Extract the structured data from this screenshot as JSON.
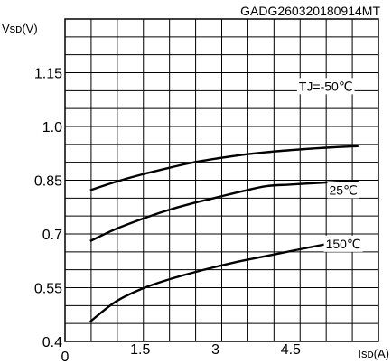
{
  "chart_data": {
    "type": "line",
    "title": "GADG260320180914MT",
    "xlabel": "Isᴅ(A)",
    "ylabel": "Vsᴅ(V)",
    "xlim": [
      0,
      6.25
    ],
    "ylim": [
      0.4,
      1.3
    ],
    "grid": true,
    "x_ticks": [
      0,
      1.5,
      3,
      4.5
    ],
    "x_tick_labels": [
      "0",
      "1.5",
      "3",
      "4.5"
    ],
    "y_ticks": [
      0.4,
      0.55,
      0.7,
      0.85,
      1.0,
      1.15
    ],
    "y_tick_labels": [
      "0.4",
      "0.55",
      "0.7",
      "0.85",
      "1.0",
      "1.15"
    ],
    "series": [
      {
        "name": "TJ=-50℃",
        "label_pos": [
          5.2,
          1.1
        ],
        "x": [
          0.5,
          1.0,
          1.5,
          2.0,
          2.5,
          3.0,
          3.5,
          4.0,
          4.5,
          5.0,
          5.5,
          5.85
        ],
        "values": [
          0.822,
          0.845,
          0.865,
          0.882,
          0.898,
          0.91,
          0.92,
          0.928,
          0.934,
          0.939,
          0.943,
          0.945
        ]
      },
      {
        "name": "25℃",
        "label_pos": [
          5.55,
          0.81
        ],
        "x": [
          0.5,
          1.0,
          1.5,
          2.0,
          2.5,
          3.0,
          3.5,
          4.0,
          4.5,
          5.0,
          5.5,
          5.85
        ],
        "values": [
          0.68,
          0.713,
          0.74,
          0.764,
          0.784,
          0.801,
          0.818,
          0.833,
          0.838,
          0.842,
          0.846,
          0.848
        ]
      },
      {
        "name": "150℃",
        "label_pos": [
          5.55,
          0.66
        ],
        "x": [
          0.5,
          1.0,
          1.5,
          2.0,
          2.5,
          3.0,
          3.5,
          4.0,
          4.5,
          5.0,
          5.5,
          5.85
        ],
        "values": [
          0.455,
          0.51,
          0.545,
          0.57,
          0.59,
          0.608,
          0.624,
          0.638,
          0.652,
          0.666,
          0.679,
          0.688
        ]
      }
    ]
  }
}
